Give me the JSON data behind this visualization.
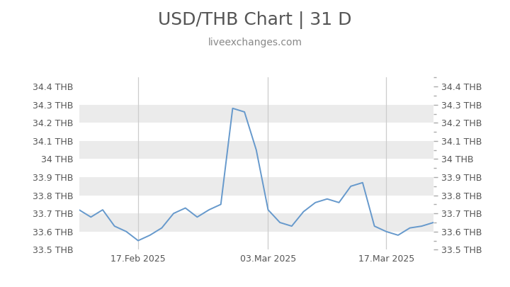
{
  "title": "USD/THB Chart | 31 D",
  "subtitle": "liveexchanges.com",
  "title_fontsize": 18,
  "subtitle_fontsize": 10,
  "line_color": "#6699cc",
  "line_width": 1.4,
  "background_color": "#ffffff",
  "plot_bg_color": "#ffffff",
  "stripe_color": "#ebebeb",
  "ylim": [
    33.5,
    34.45
  ],
  "yticks": [
    33.5,
    33.6,
    33.7,
    33.8,
    33.9,
    34.0,
    34.1,
    34.2,
    34.3,
    34.4
  ],
  "ytick_labels": [
    "33.5 THB",
    "33.6 THB",
    "33.7 THB",
    "33.8 THB",
    "33.9 THB",
    "34 THB",
    "34.1 THB",
    "34.2 THB",
    "34.3 THB",
    "34.4 THB"
  ],
  "xtick_labels": [
    "17.Feb 2025",
    "03.Mar 2025",
    "17.Mar 2025"
  ],
  "xtick_positions": [
    5,
    16,
    26
  ],
  "vline_positions": [
    5,
    16,
    26
  ],
  "x_values": [
    0,
    1,
    2,
    3,
    4,
    5,
    6,
    7,
    8,
    9,
    10,
    11,
    12,
    13,
    14,
    15,
    16,
    17,
    18,
    19,
    20,
    21,
    22,
    23,
    24,
    25,
    26,
    27,
    28,
    29,
    30
  ],
  "y_values": [
    33.72,
    33.68,
    33.72,
    33.63,
    33.6,
    33.55,
    33.58,
    33.62,
    33.7,
    33.73,
    33.68,
    33.72,
    33.75,
    34.28,
    34.26,
    34.05,
    33.72,
    33.65,
    33.63,
    33.71,
    33.76,
    33.78,
    33.76,
    33.85,
    33.87,
    33.63,
    33.6,
    33.58,
    33.62,
    33.63,
    33.65
  ],
  "title_color": "#555555",
  "subtitle_color": "#888888",
  "tick_label_color": "#555555",
  "vline_color": "#cccccc",
  "right_tick_color": "#aaaaaa"
}
